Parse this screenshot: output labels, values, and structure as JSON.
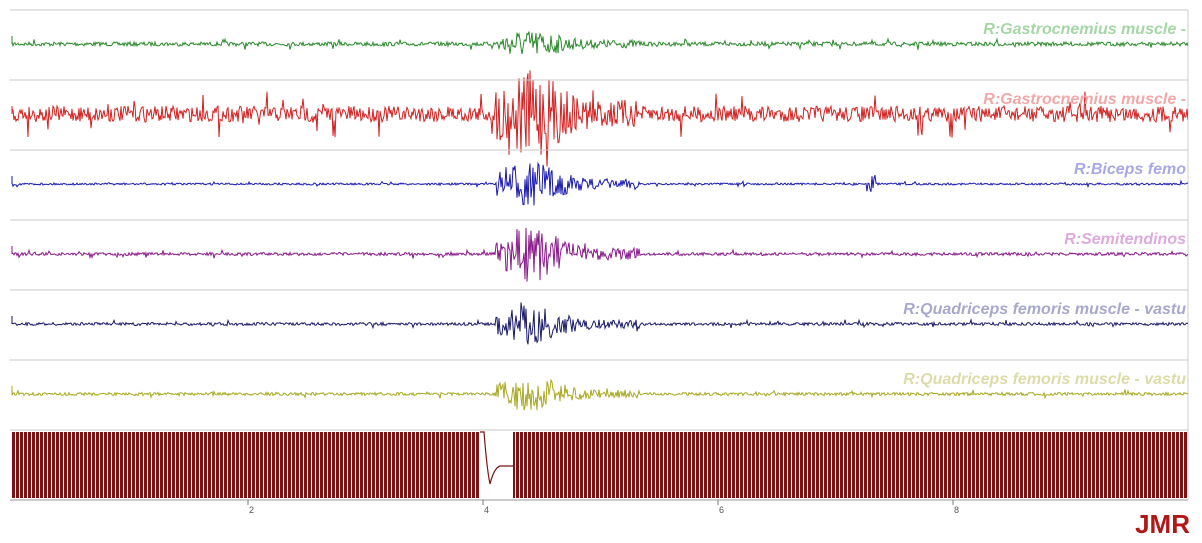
{
  "channels": [
    {
      "label": "R:Gastrocnemius muscle -",
      "color": "#2a8a2a",
      "label_color": "#a6d6a6"
    },
    {
      "label": "R:Gastrocnemius muscle -",
      "color": "#d42020",
      "label_color": "#f2a8a8"
    },
    {
      "label": "R:Biceps femo",
      "color": "#1a1ab0",
      "label_color": "#a8a8e6"
    },
    {
      "label": "R:Semitendinos",
      "color": "#8a1a8a",
      "label_color": "#dcaadc"
    },
    {
      "label": "R:Quadriceps femoris muscle - vastu",
      "color": "#1a1a6a",
      "label_color": "#a8a8cc"
    },
    {
      "label": "R:Quadriceps femoris muscle - vastu",
      "color": "#a8a820",
      "label_color": "#dcdca8"
    }
  ],
  "time_axis": {
    "ticks": [
      "2",
      "4",
      "6",
      "8"
    ]
  },
  "logo": "JMR"
}
